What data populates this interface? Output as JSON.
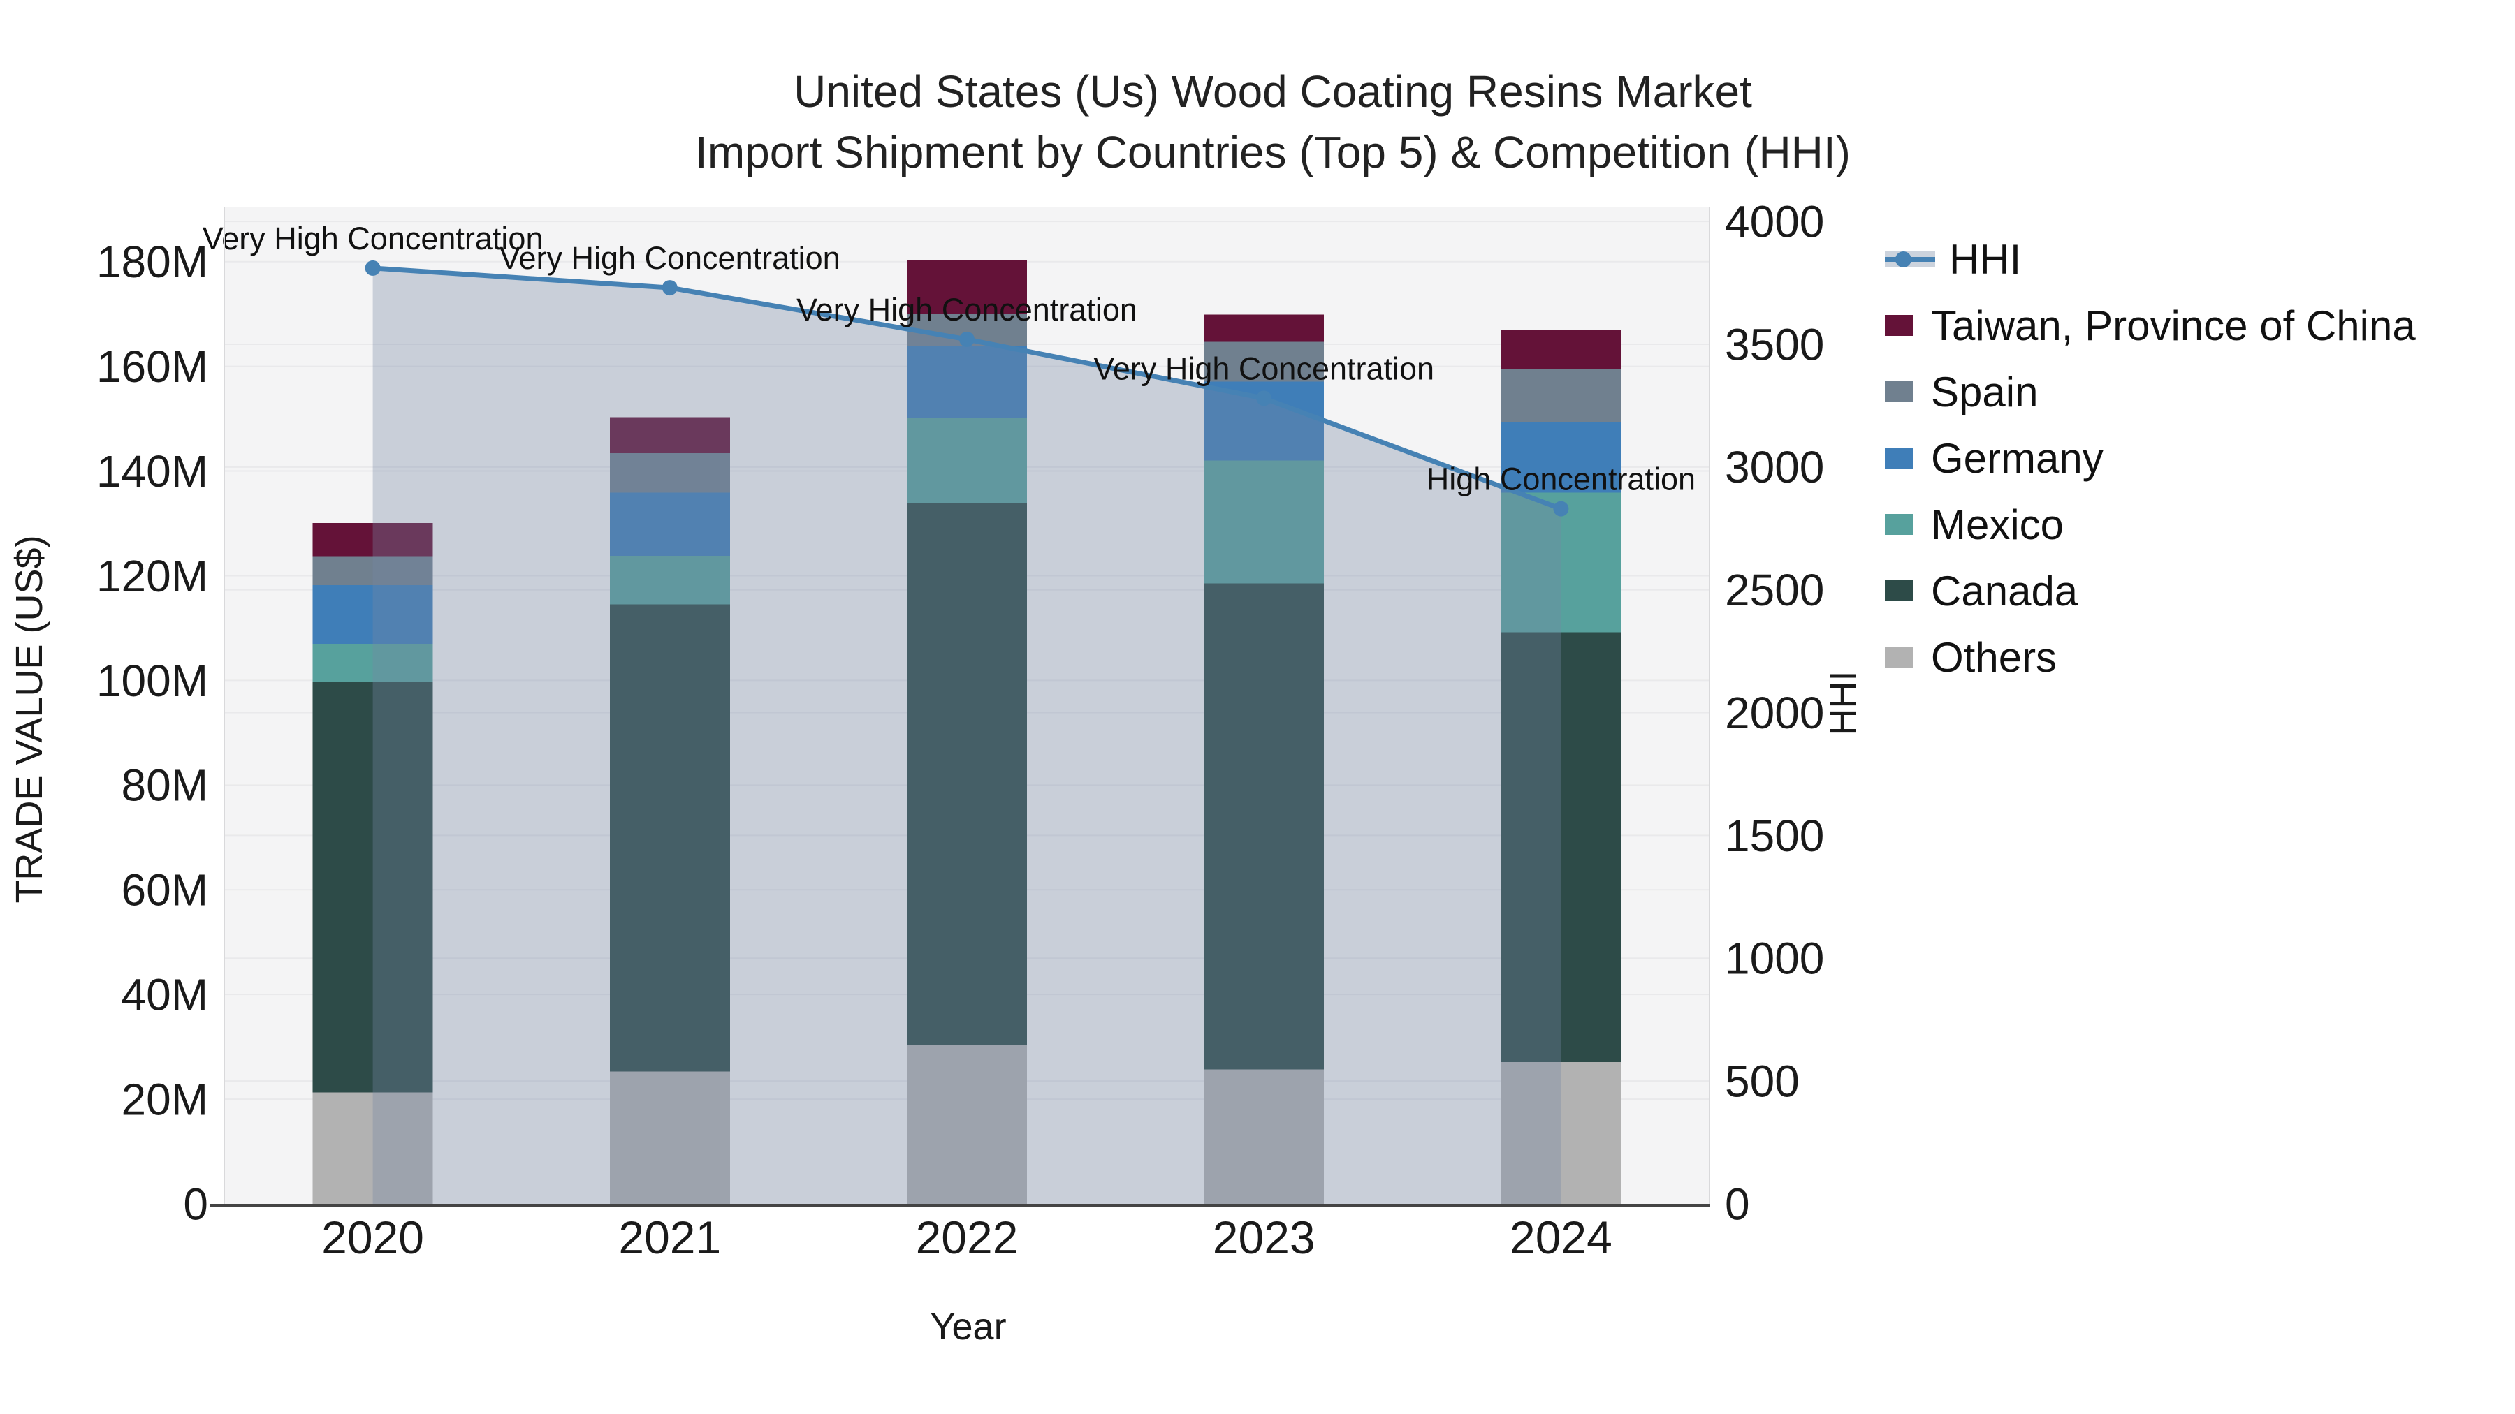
{
  "title": {
    "line1": "United States (Us) Wood Coating Resins Market",
    "line2": "Import Shipment by Countries (Top 5) & Competition (HHI)"
  },
  "axes": {
    "left_title": "TRADE VALUE (US$)",
    "right_title": "HHI",
    "bottom_title": "Year"
  },
  "legend": {
    "items": [
      {
        "key": "hhi",
        "label": "HHI",
        "type": "line",
        "color": "#4682b4",
        "band": "#ccd3dd"
      },
      {
        "key": "taiwan",
        "label": "Taiwan, Province of China",
        "type": "swatch",
        "color": "#641238"
      },
      {
        "key": "spain",
        "label": "Spain",
        "type": "swatch",
        "color": "#70808f"
      },
      {
        "key": "germany",
        "label": "Germany",
        "type": "swatch",
        "color": "#3f7eb8"
      },
      {
        "key": "mexico",
        "label": "Mexico",
        "type": "swatch",
        "color": "#57a19d"
      },
      {
        "key": "canada",
        "label": "Canada",
        "type": "swatch",
        "color": "#2d4b48"
      },
      {
        "key": "others",
        "label": "Others",
        "type": "swatch",
        "color": "#b2b2b2"
      }
    ]
  },
  "colors": {
    "plot_bg": "#f4f4f5",
    "grid": "#e9e9eb",
    "axis_line": "#444444",
    "tick_text": "#1a1a1a",
    "annotation_text": "#111111",
    "plot_border": "#d9d9db"
  },
  "chart_data": {
    "type": "bar+line combo (stacked bars left axis, HHI line right axis)",
    "title": "United States (Us) Wood Coating Resins Market Import Shipment by Countries (Top 5) & Competition (HHI)",
    "xlabel": "Year",
    "ylabel": "TRADE VALUE (US$)",
    "y2label": "HHI",
    "categories": [
      "2020",
      "2021",
      "2022",
      "2023",
      "2024"
    ],
    "bar_unit": "million US$",
    "bar_series": [
      {
        "name": "Others",
        "color": "#b2b2b2",
        "values": [
          21.3,
          25.3,
          30.4,
          25.7,
          27.1
        ]
      },
      {
        "name": "Canada",
        "color": "#2d4b48",
        "values": [
          78.4,
          89.2,
          103.5,
          92.8,
          82.1
        ]
      },
      {
        "name": "Mexico",
        "color": "#57a19d",
        "values": [
          7.3,
          9.3,
          16.2,
          23.5,
          26.7
        ]
      },
      {
        "name": "Germany",
        "color": "#3f7eb8",
        "values": [
          11.2,
          12.1,
          13.8,
          15.1,
          13.4
        ]
      },
      {
        "name": "Spain",
        "color": "#70808f",
        "values": [
          5.5,
          7.5,
          6.2,
          7.6,
          10.2
        ]
      },
      {
        "name": "Taiwan, Province of China",
        "color": "#641238",
        "values": [
          6.4,
          6.9,
          10.2,
          5.2,
          7.5
        ]
      }
    ],
    "bar_totals": [
      130.1,
      150.3,
      180.3,
      169.9,
      167.0
    ],
    "line_series": {
      "name": "HHI",
      "color": "#4682b4",
      "fill": "rgba(118,135,163,0.34)",
      "values": [
        3810,
        3730,
        3520,
        3280,
        2830
      ]
    },
    "annotations": [
      "Very High Concentration",
      "Very High Concentration",
      "Very High Concentration",
      "Very High Concentration",
      "High Concentration"
    ],
    "ylim": [
      0,
      190.5
    ],
    "y2lim": [
      0,
      4060
    ],
    "grid": true,
    "legend_position": "right",
    "yticks": [
      {
        "v": 0,
        "label": "0"
      },
      {
        "v": 20,
        "label": "20M"
      },
      {
        "v": 40,
        "label": "40M"
      },
      {
        "v": 60,
        "label": "60M"
      },
      {
        "v": 80,
        "label": "80M"
      },
      {
        "v": 100,
        "label": "100M"
      },
      {
        "v": 120,
        "label": "120M"
      },
      {
        "v": 140,
        "label": "140M"
      },
      {
        "v": 160,
        "label": "160M"
      },
      {
        "v": 180,
        "label": "180M"
      }
    ],
    "y2ticks": [
      {
        "v": 0,
        "label": "0"
      },
      {
        "v": 500,
        "label": "500"
      },
      {
        "v": 1000,
        "label": "1000"
      },
      {
        "v": 1500,
        "label": "1500"
      },
      {
        "v": 2000,
        "label": "2000"
      },
      {
        "v": 2500,
        "label": "2500"
      },
      {
        "v": 3000,
        "label": "3000"
      },
      {
        "v": 3500,
        "label": "3500"
      },
      {
        "v": 4000,
        "label": "4000"
      }
    ]
  }
}
